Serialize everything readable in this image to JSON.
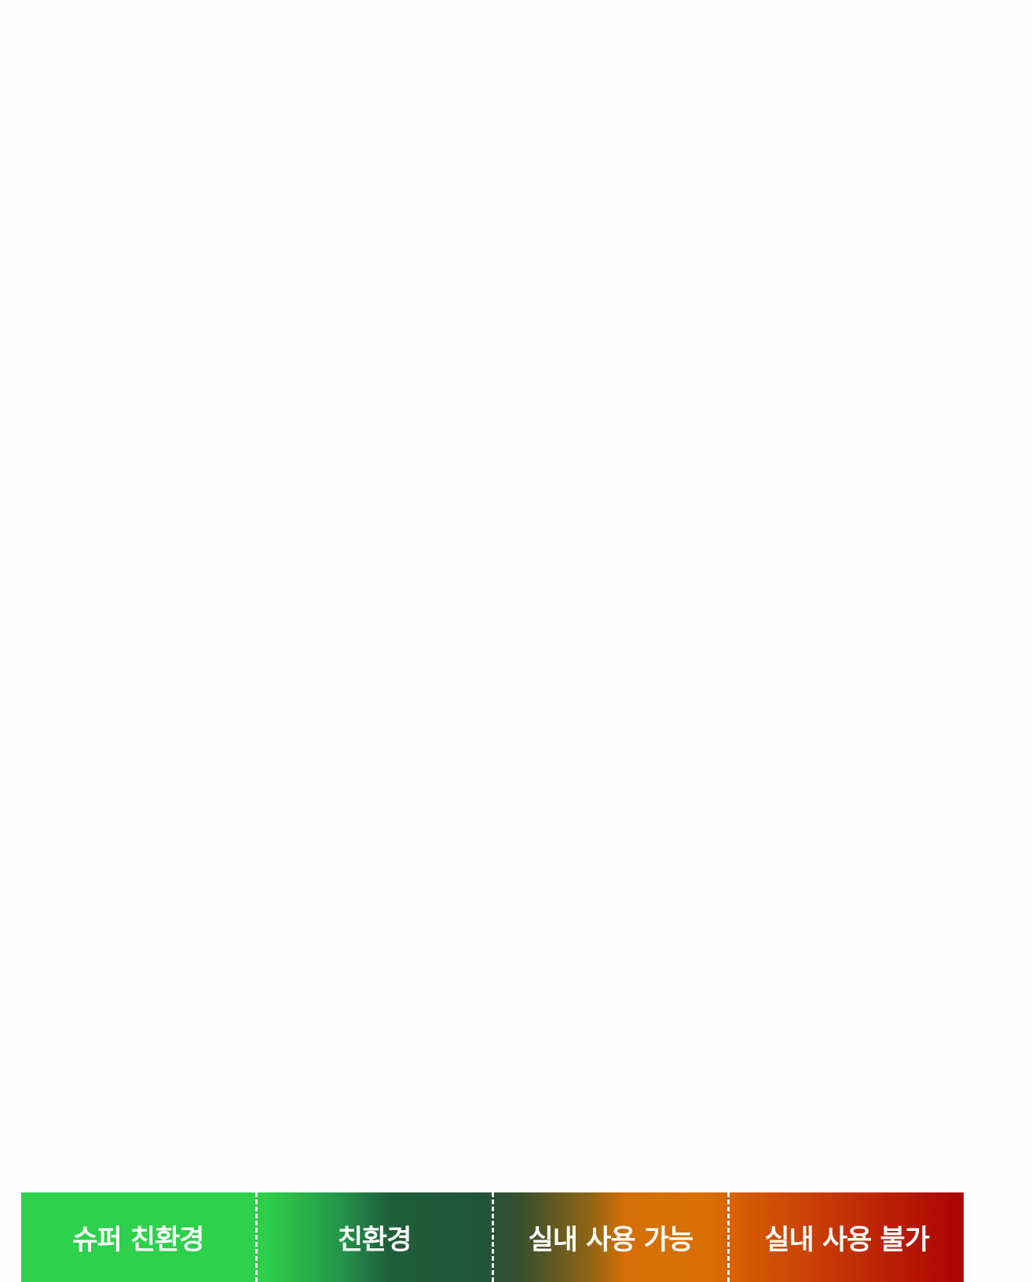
{
  "legend": {
    "segments": [
      {
        "label": "슈퍼 친환경"
      },
      {
        "label": "친환경"
      },
      {
        "label": "실내 사용 가능"
      },
      {
        "label": "실내 사용 불가"
      }
    ],
    "colors": {
      "super_eco": "#2dd14b",
      "eco": "#1f5438",
      "indoor_ok": "#d86f02",
      "indoor_no": "#ab0202",
      "background": "#fdfdfd",
      "text": "#ffffff"
    }
  }
}
